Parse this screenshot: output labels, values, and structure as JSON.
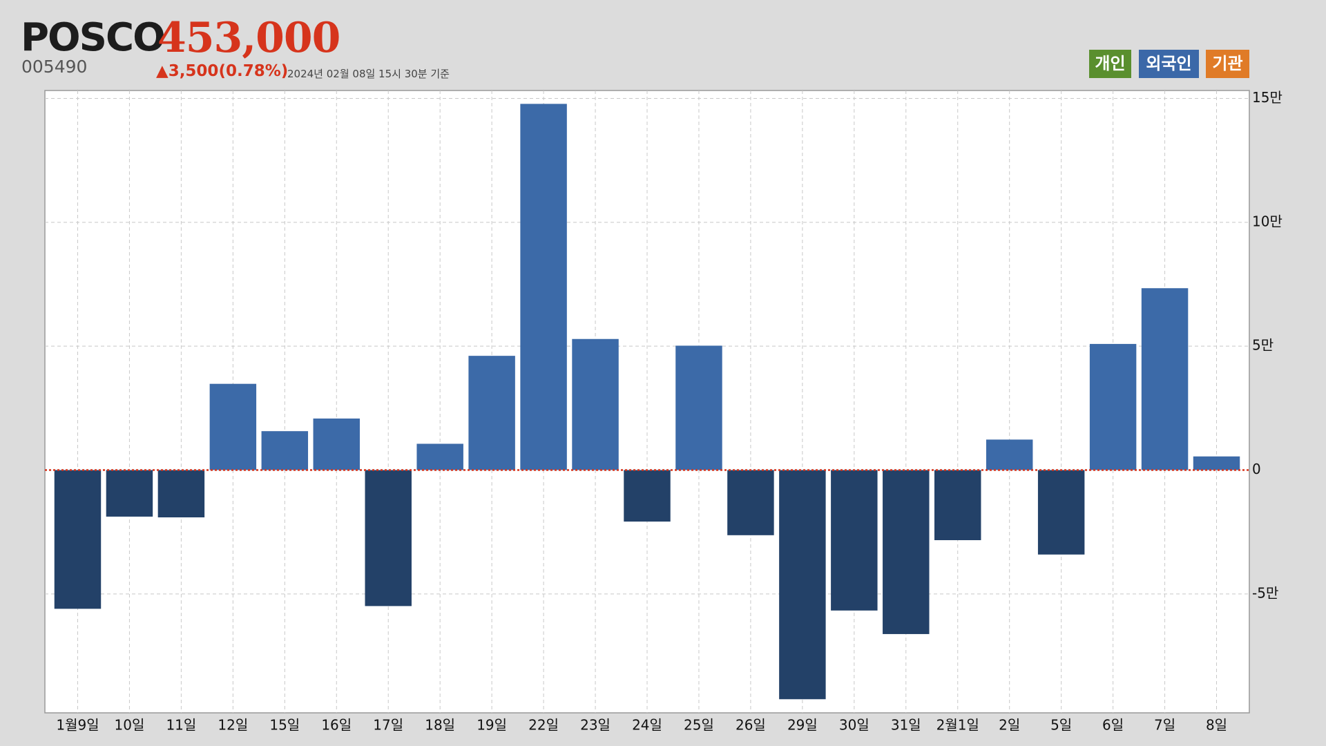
{
  "header": {
    "name": "POSCO",
    "price": "453,000",
    "code": "005490",
    "change": "▲3,500(0.78%)",
    "timestamp": "2024년 02월 08일 15시 30분 기준"
  },
  "legend_buttons": [
    "개인",
    "외국인",
    "기관"
  ],
  "chart_data": {
    "type": "bar",
    "categories": [
      "1월9일",
      "10일",
      "11일",
      "12일",
      "15일",
      "16일",
      "17일",
      "18일",
      "19일",
      "22일",
      "23일",
      "24일",
      "25일",
      "26일",
      "29일",
      "30일",
      "31일",
      "2월1일",
      "2일",
      "5일",
      "6일",
      "7일",
      "8일"
    ],
    "values": [
      -56000,
      -18800,
      -19100,
      34800,
      15700,
      20800,
      -54900,
      10600,
      46100,
      147800,
      52900,
      -20800,
      50200,
      -26300,
      -92500,
      -56700,
      -66200,
      -28300,
      12300,
      -34100,
      50900,
      73400,
      5500
    ],
    "positive_color": "#3c6aa8",
    "negative_color": "#234168",
    "ylim": [
      -98000,
      153200
    ],
    "yticks": [
      {
        "value": -50000,
        "label": "-5만"
      },
      0,
      {
        "value": 50000,
        "label": "5만"
      },
      {
        "value": 100000,
        "label": "10만"
      },
      {
        "value": 150000,
        "label": "15만"
      }
    ],
    "grid": true
  }
}
